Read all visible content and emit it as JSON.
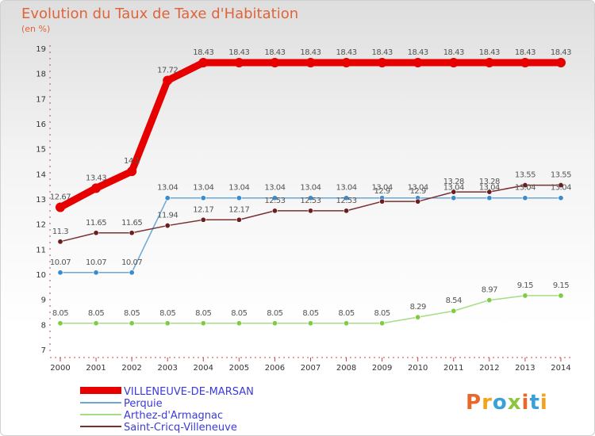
{
  "title": "Evolution du Taux de Taxe d'Habitation",
  "subtitle": "(en %)",
  "logo": "Proxiti",
  "chart_data": {
    "type": "line",
    "x": [
      "2000",
      "2001",
      "2002",
      "2003",
      "2004",
      "2005",
      "2006",
      "2007",
      "2008",
      "2009",
      "2010",
      "2011",
      "2012",
      "2013",
      "2014"
    ],
    "ylim": [
      7,
      19
    ],
    "yticks": [
      7,
      8,
      9,
      10,
      11,
      12,
      13,
      14,
      15,
      16,
      17,
      18,
      19
    ],
    "grid": false,
    "legend": "bottom-left",
    "series": [
      {
        "name": "VILLENEUVE-DE-MARSAN",
        "color": "#e60000",
        "width": 9,
        "values": [
          12.67,
          13.43,
          14.1,
          17.72,
          18.43,
          18.43,
          18.43,
          18.43,
          18.43,
          18.43,
          18.43,
          18.43,
          18.43,
          18.43,
          18.43
        ],
        "labels": [
          "12.67",
          "13.43",
          "14.1",
          "17.72",
          "18.43",
          "18.43",
          "18.43",
          "18.43",
          "18.43",
          "18.43",
          "18.43",
          "18.43",
          "18.43",
          "18.43",
          "18.43"
        ]
      },
      {
        "name": "Perquie",
        "color": "#6aa8d8",
        "marker": "#3b8ccc",
        "width": 1.5,
        "values": [
          10.07,
          10.07,
          10.07,
          13.04,
          13.04,
          13.04,
          13.04,
          13.04,
          13.04,
          13.04,
          13.04,
          13.04,
          13.04,
          13.04,
          13.04
        ],
        "labels": [
          "10.07",
          "10.07",
          "10.07",
          "13.04",
          "13.04",
          "13.04",
          "13.04",
          "13.04",
          "13.04",
          "13.04",
          "13.04",
          "13.04",
          "13.04",
          "13.04",
          "13.04"
        ]
      },
      {
        "name": "Arthez-d'Armagnac",
        "color": "#a6dd84",
        "marker": "#7fcc44",
        "width": 1.5,
        "values": [
          8.05,
          8.05,
          8.05,
          8.05,
          8.05,
          8.05,
          8.05,
          8.05,
          8.05,
          8.05,
          8.29,
          8.54,
          8.97,
          9.15,
          9.15
        ],
        "labels": [
          "8.05",
          "8.05",
          "8.05",
          "8.05",
          "8.05",
          "8.05",
          "8.05",
          "8.05",
          "8.05",
          "8.05",
          "8.29",
          "8.54",
          "8.97",
          "9.15",
          "9.15"
        ]
      },
      {
        "name": "Saint-Cricq-Villeneuve",
        "color": "#7a3030",
        "marker": "#6a1e1e",
        "width": 1.5,
        "values": [
          11.3,
          11.65,
          11.65,
          11.94,
          12.17,
          12.17,
          12.53,
          12.53,
          12.53,
          12.9,
          12.9,
          13.28,
          13.28,
          13.55,
          13.55
        ],
        "labels": [
          "11.3",
          "11.65",
          "11.65",
          "11.94",
          "12.17",
          "12.17",
          "12.53",
          "12.53",
          "12.53",
          "12.9",
          "12.9",
          "13.28",
          "13.28",
          "13.55",
          "13.55"
        ]
      }
    ]
  }
}
